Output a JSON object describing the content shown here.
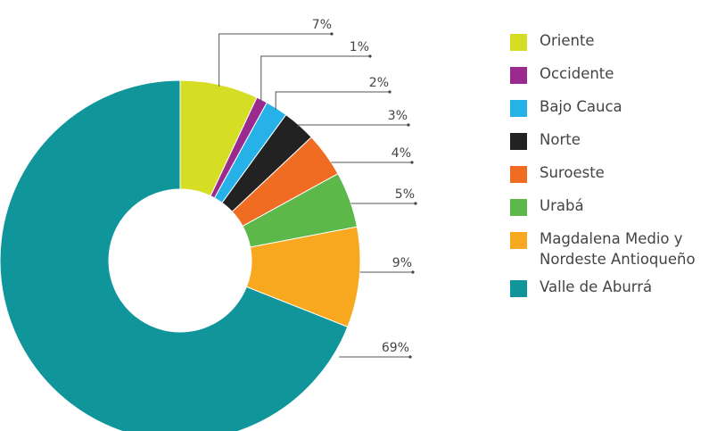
{
  "chart_data": {
    "type": "pie",
    "donut": true,
    "title": "",
    "legend_position": "right",
    "slices": [
      {
        "label": "Oriente",
        "value": 7,
        "display": "7%",
        "color": "#d6dd25"
      },
      {
        "label": "Occidente",
        "value": 1,
        "display": "1%",
        "color": "#9b2a8e"
      },
      {
        "label": "Bajo Cauca",
        "value": 2,
        "display": "2%",
        "color": "#26b2e9"
      },
      {
        "label": "Norte",
        "value": 3,
        "display": "3%",
        "color": "#222222"
      },
      {
        "label": "Suroeste",
        "value": 4,
        "display": "4%",
        "color": "#f06c23"
      },
      {
        "label": "Urabá",
        "value": 5,
        "display": "5%",
        "color": "#5cb849"
      },
      {
        "label": "Magdalena Medio y\nNordeste Antioqueño",
        "value": 9,
        "display": "9%",
        "color": "#f7a81e"
      },
      {
        "label": "Valle de Aburrá",
        "value": 69,
        "display": "69%",
        "color": "#10959b"
      }
    ]
  }
}
